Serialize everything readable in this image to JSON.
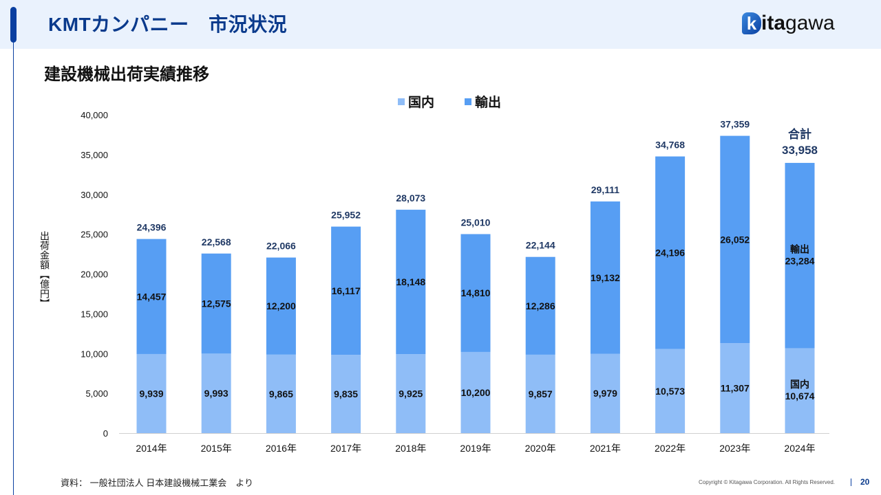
{
  "header": {
    "title": "KMTカンパニー　市況状況",
    "logo_text_bold": "ita",
    "logo_text": "gawa",
    "logo_letter": "k"
  },
  "subtitle": "建設機械出荷実績推移",
  "footer": {
    "source": "資料：  一般社団法人 日本建設機械工業会　より",
    "copyright": "Copyright © Kitagawa Corporation. All Rights Reserved.",
    "page": "20"
  },
  "chart_data": {
    "type": "bar",
    "stacked": true,
    "ylabel": "出荷金額【億円】",
    "ylim": [
      0,
      40000
    ],
    "yticks": [
      "0",
      "5,000",
      "10,000",
      "15,000",
      "20,000",
      "25,000",
      "30,000",
      "35,000",
      "40,000"
    ],
    "categories": [
      "2014年",
      "2015年",
      "2016年",
      "2017年",
      "2018年",
      "2019年",
      "2020年",
      "2021年",
      "2022年",
      "2023年",
      "2024年"
    ],
    "legend": "top",
    "series": [
      {
        "name": "国内",
        "color": "#8fbdf7",
        "values": [
          9939,
          9993,
          9865,
          9835,
          9925,
          10200,
          9857,
          9979,
          10573,
          11307,
          10674
        ],
        "labels": [
          "9,939",
          "9,993",
          "9,865",
          "9,835",
          "9,925",
          "10,200",
          "9,857",
          "9,979",
          "10,573",
          "11,307",
          "10,674"
        ]
      },
      {
        "name": "輸出",
        "color": "#579ef3",
        "values": [
          14457,
          12575,
          12200,
          16117,
          18148,
          14810,
          12286,
          19132,
          24196,
          26052,
          23284
        ],
        "labels": [
          "14,457",
          "12,575",
          "12,200",
          "16,117",
          "18,148",
          "14,810",
          "12,286",
          "19,132",
          "24,196",
          "26,052",
          "23,284"
        ]
      }
    ],
    "totals": [
      "24,396",
      "22,568",
      "22,066",
      "25,952",
      "28,073",
      "25,010",
      "22,144",
      "29,111",
      "34,768",
      "37,359",
      "33,958"
    ],
    "total_label": "合計",
    "total_color": "#1f3864"
  }
}
